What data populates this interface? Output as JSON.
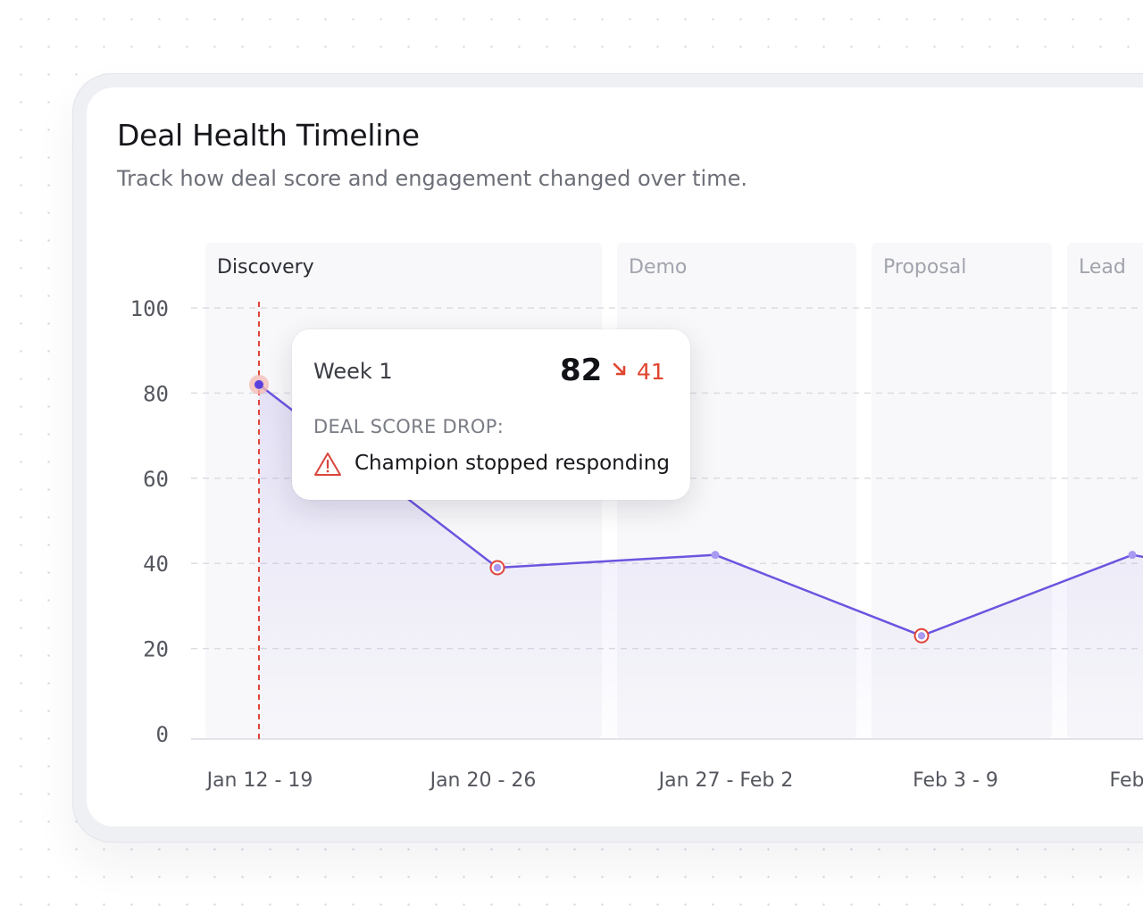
{
  "header": {
    "title": "Deal Health Timeline",
    "subtitle": "Track how deal score and engagement changed over time."
  },
  "chart_data": {
    "type": "area",
    "title": "Deal Health Timeline",
    "subtitle": "Track how deal score and engagement changed over time.",
    "xlabel": "",
    "ylabel": "",
    "ylim": [
      0,
      100
    ],
    "yticks": [
      0,
      20,
      40,
      60,
      80,
      100
    ],
    "grid": true,
    "categories": [
      "Jan 12 - 19",
      "Jan 20 - 26",
      "Jan 27 - Feb 2",
      "Feb 3 - 9",
      "Feb"
    ],
    "stages": [
      {
        "name": "Discovery",
        "active": true
      },
      {
        "name": "Demo",
        "active": false
      },
      {
        "name": "Proposal",
        "active": false
      },
      {
        "name": "Lead",
        "active": false
      }
    ],
    "series": [
      {
        "values": [
          82,
          39,
          42,
          23,
          42
        ],
        "drop_points": [
          1,
          3
        ],
        "selected_point": 0,
        "color": "#6b55e0"
      }
    ],
    "marker": {
      "index": 0,
      "color": "#e0453a"
    }
  },
  "tooltip": {
    "week": "Week 1",
    "score": "82",
    "change": "41",
    "change_icon": "arrow-down-right-icon",
    "label": "DEAL SCORE DROP:",
    "reason_icon": "warning-triangle-icon",
    "reason": "Champion stopped responding"
  },
  "colors": {
    "accent": "#6b55e0",
    "alert": "#e0452f",
    "stage_background": "#f8f8fa"
  }
}
